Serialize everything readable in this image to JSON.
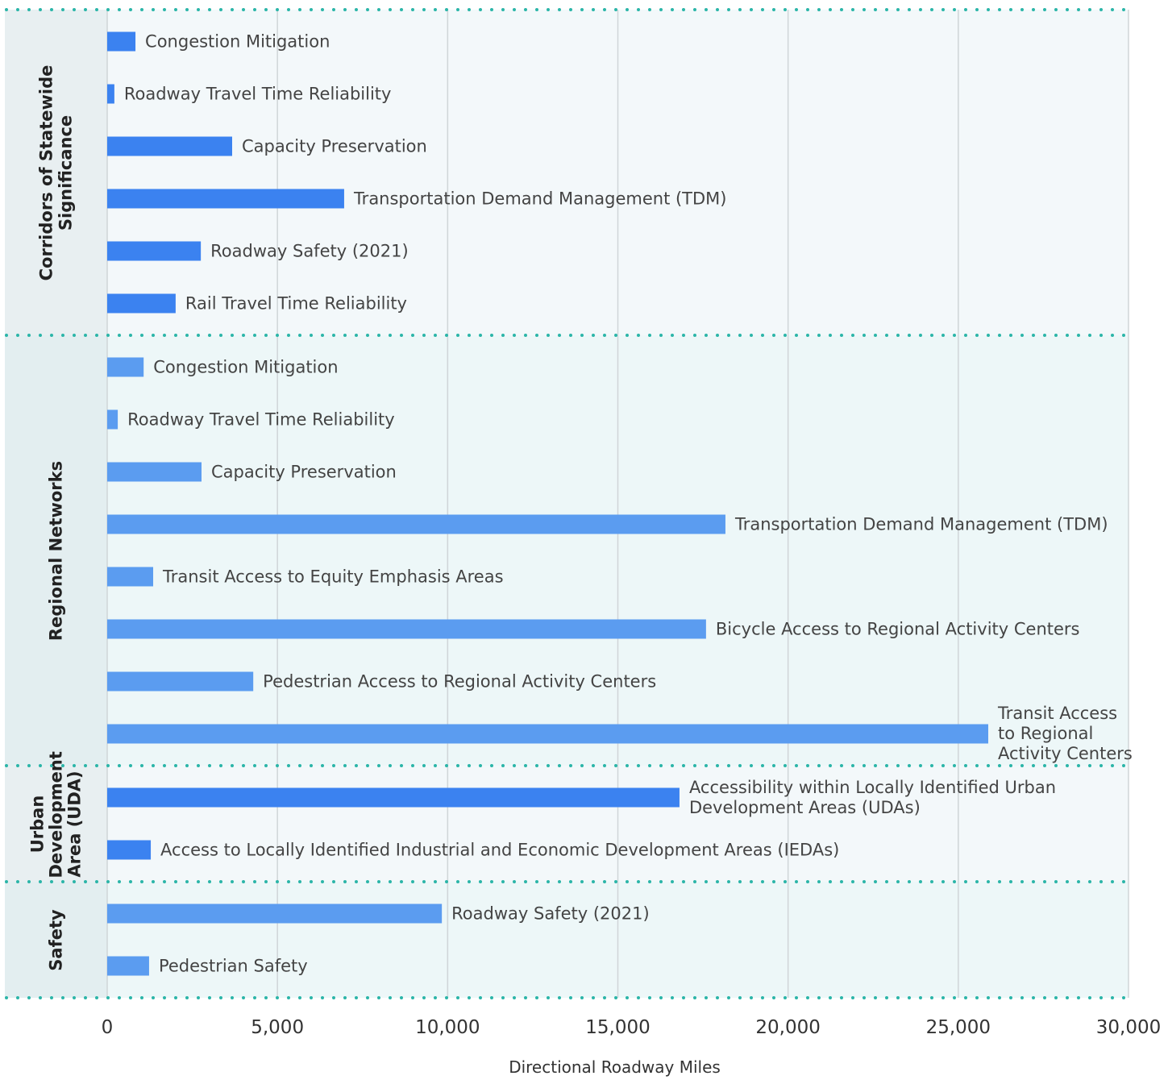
{
  "chart_data": {
    "type": "bar",
    "xlabel": "Directional Roadway Miles",
    "xlim": [
      0,
      30000
    ],
    "xticks": [
      0,
      {
        "value": 5000,
        "label": "5,000"
      },
      {
        "value": 10000,
        "label": "10,000"
      },
      {
        "value": 15000,
        "label": "15,000"
      },
      {
        "value": 20000,
        "label": "20,000"
      },
      {
        "value": 25000,
        "label": "25,000"
      },
      {
        "value": 30000,
        "label": "30,000"
      }
    ],
    "grid": true,
    "groups": [
      {
        "name": "Corridors of Statewide Significance",
        "color": "#3b82f0",
        "categories": [
          "Congestion Mitigation",
          "Roadway Travel Time Reliability",
          "Capacity Preservation",
          "Transportation Demand Management (TDM)",
          "Roadway Safety (2021)",
          "Rail Travel Time Reliability"
        ],
        "values": [
          830,
          210,
          3670,
          6960,
          2750,
          2010
        ]
      },
      {
        "name": "Regional Networks",
        "color": "#5b9cf0",
        "categories": [
          "Congestion Mitigation",
          "Roadway Travel Time Reliability",
          "Capacity Preservation",
          "Transportation Demand Management (TDM)",
          "Transit Access to Equity Emphasis Areas",
          "Bicycle Access to Regional Activity Centers",
          "Pedestrian Access to Regional Activity Centers",
          "Transit Access to Regional Activity Centers"
        ],
        "values": [
          1070,
          310,
          2770,
          18160,
          1350,
          17590,
          4290,
          25880
        ]
      },
      {
        "name": "Urban Development Area (UDA)",
        "color": "#3b82f0",
        "categories": [
          "Accessibility within Locally Identified Urban Development Areas (UDAs)",
          "Access to Locally Identified Industrial and Economic Development Areas (IEDAs)"
        ],
        "values": [
          16810,
          1280
        ]
      },
      {
        "name": "Safety",
        "color": "#5b9cf0",
        "categories": [
          "Roadway Safety (2021)",
          "Pedestrian Safety"
        ],
        "values": [
          9830,
          1230
        ]
      }
    ]
  }
}
